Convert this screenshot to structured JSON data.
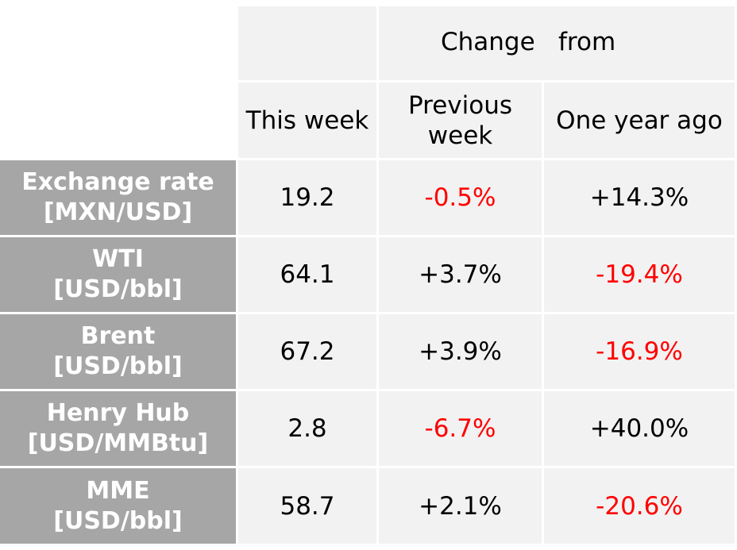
{
  "header": {
    "group_label_left": "Change",
    "group_label_right": "from",
    "col_this_week": "This week",
    "col_prev_week_line1": "Previous",
    "col_prev_week_line2": "week",
    "col_year_ago": "One year ago"
  },
  "rows": [
    {
      "label_line1": "Exchange rate",
      "label_line2": "[MXN/USD]",
      "this_week": "19.2",
      "prev_week": "-0.5%",
      "year_ago": "+14.3%"
    },
    {
      "label_line1": "WTI",
      "label_line2": "[USD/bbl]",
      "this_week": "64.1",
      "prev_week": "+3.7%",
      "year_ago": "-19.4%"
    },
    {
      "label_line1": "Brent",
      "label_line2": "[USD/bbl]",
      "this_week": "67.2",
      "prev_week": "+3.9%",
      "year_ago": "-16.9%"
    },
    {
      "label_line1": "Henry Hub",
      "label_line2": "[USD/MMBtu]",
      "this_week": "2.8",
      "prev_week": "-6.7%",
      "year_ago": "+40.0%"
    },
    {
      "label_line1": "MME",
      "label_line2": "[USD/bbl]",
      "this_week": "58.7",
      "prev_week": "+2.1%",
      "year_ago": "-20.6%"
    }
  ],
  "colors": {
    "negative": "#ff0000",
    "positive": "#000000",
    "label_bg": "#a6a6a6",
    "cell_bg": "#f2f2f2"
  }
}
